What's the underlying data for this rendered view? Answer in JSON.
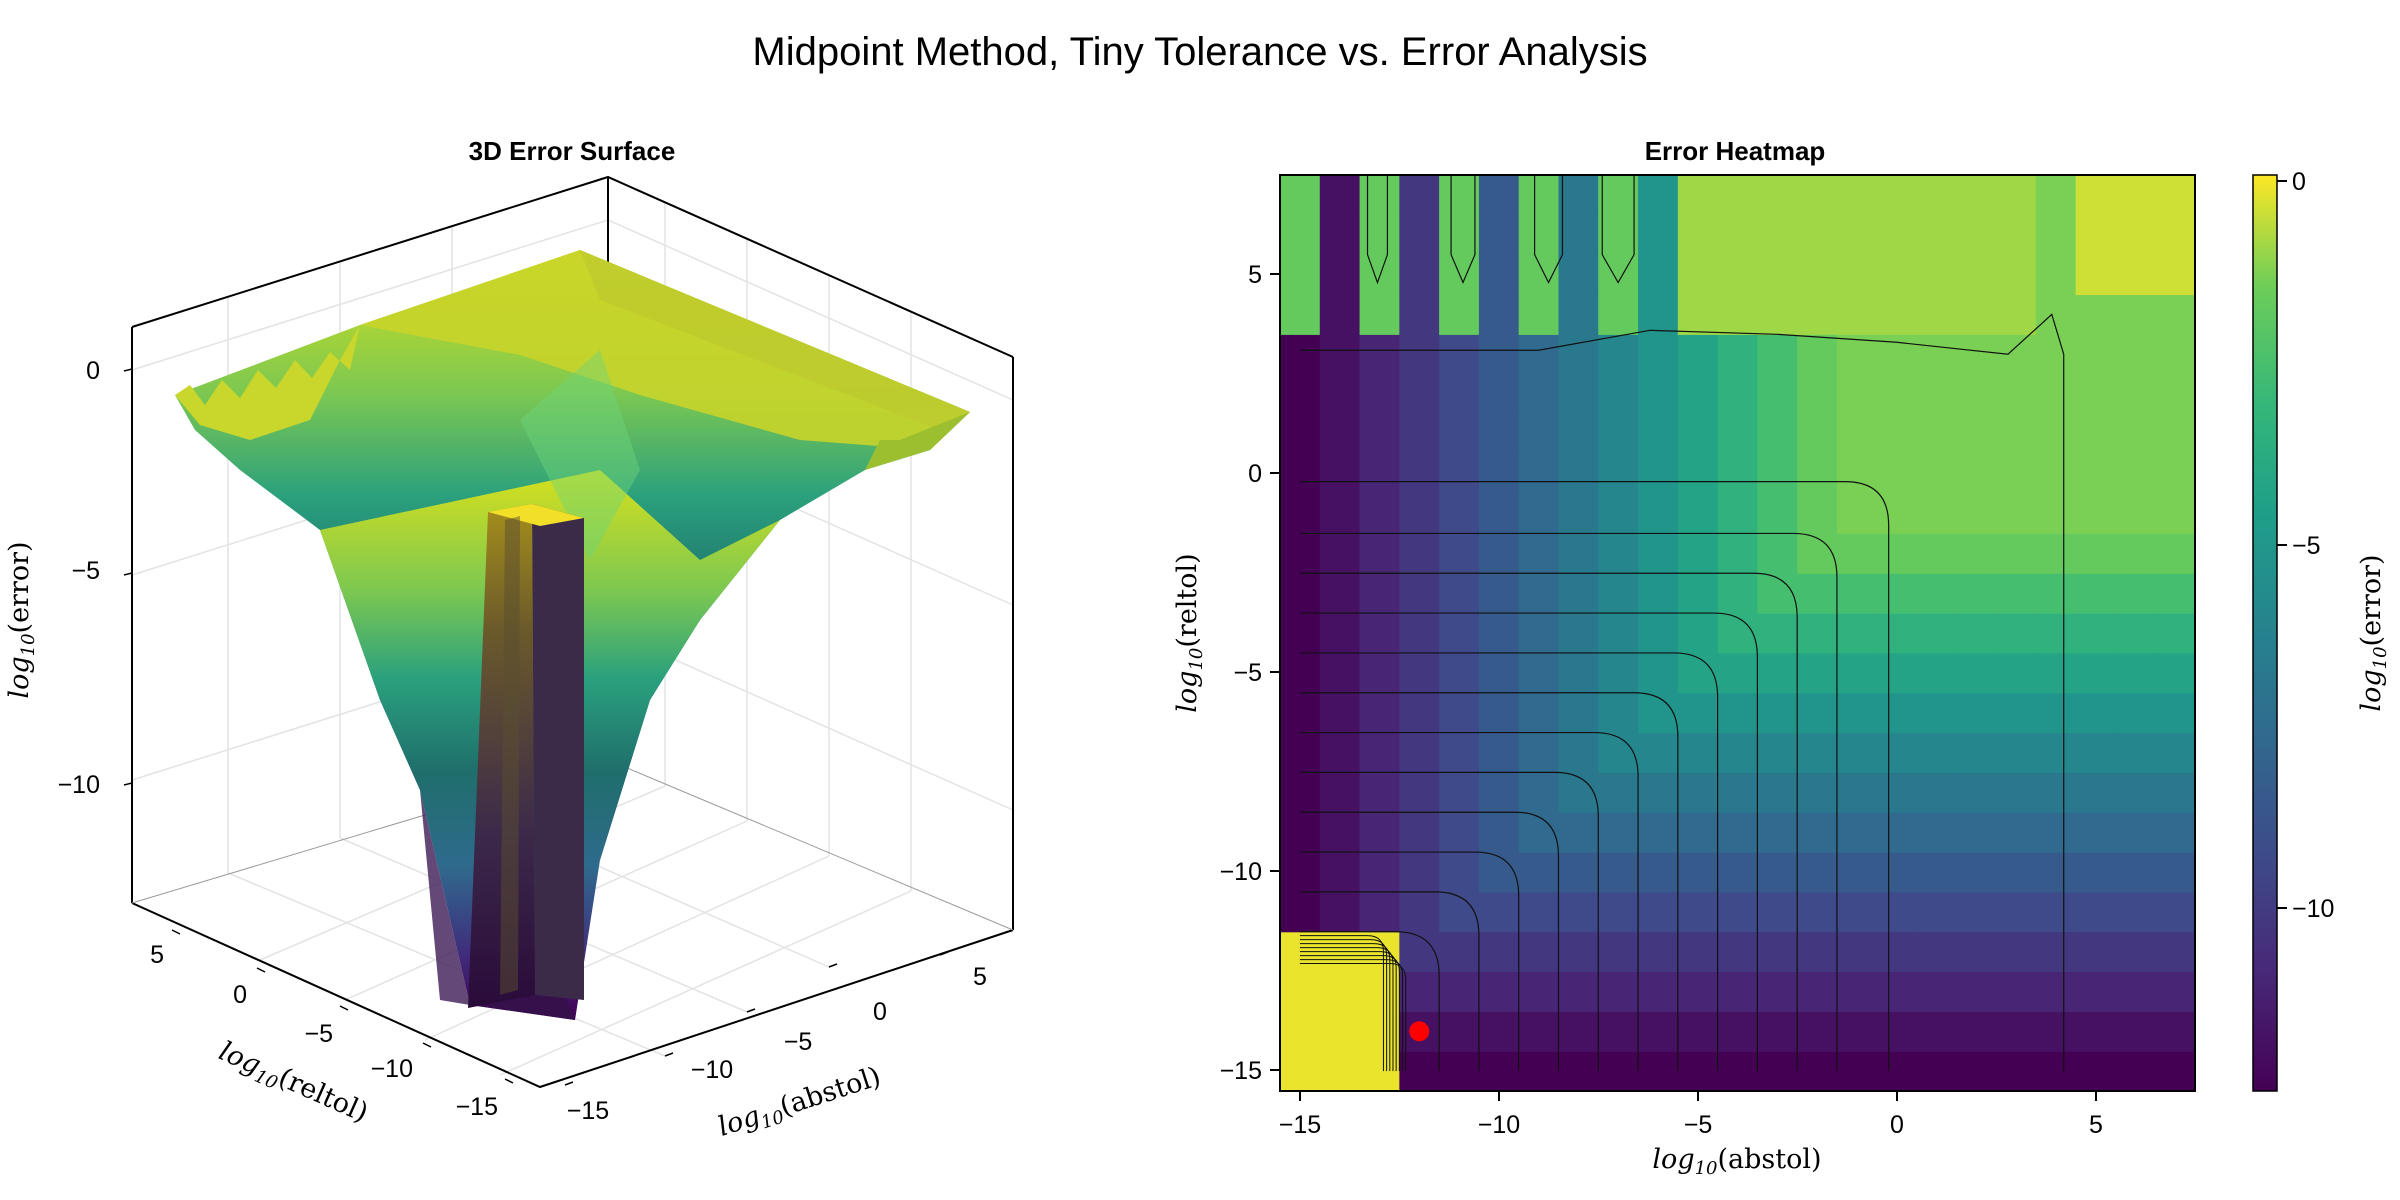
{
  "figure": {
    "title": "Midpoint Method, Tiny Tolerance vs. Error Analysis"
  },
  "colors": {
    "viridis_low": "#440154",
    "viridis_mid": "#21918c",
    "viridis_high": "#fde725",
    "marker": "#ff0000"
  },
  "chart_data": [
    {
      "type": "surface3d",
      "title": "3D Error Surface",
      "x_label": "log10(abstol)",
      "y_label": "log10(reltol)",
      "z_label": "log10(error)",
      "xlim": [
        -15,
        7
      ],
      "ylim": [
        -15,
        7
      ],
      "zlim": [
        -13,
        1
      ],
      "x_ticks": [
        -15,
        -10,
        -5,
        0,
        5
      ],
      "y_ticks": [
        -15,
        -10,
        -5,
        0,
        5
      ],
      "z_ticks": [
        -10,
        -5,
        0
      ],
      "grid": true,
      "colormap": "viridis"
    },
    {
      "type": "heatmap",
      "title": "Error Heatmap",
      "x_label": "log10(abstol)",
      "y_label": "log10(reltol)",
      "xlim": [
        -15.5,
        7.5
      ],
      "ylim": [
        -15.5,
        7.5
      ],
      "x_ticks": [
        -15,
        -10,
        -5,
        0,
        5
      ],
      "y_ticks": [
        -15,
        -10,
        -5,
        0,
        5
      ],
      "grid_step": 1,
      "colormap": "viridis",
      "colorbar": {
        "label": "log10(error)",
        "range": [
          -12.5,
          0.2
        ],
        "ticks": [
          0,
          -5,
          -10
        ]
      },
      "contours": true,
      "highlight_point": {
        "x": -12,
        "y": -14
      }
    }
  ],
  "tick_text": {
    "surf_x": [
      "−15",
      "−10",
      "−5",
      "0",
      "5"
    ],
    "surf_y": [
      "5",
      "0",
      "−5",
      "−10",
      "−15"
    ],
    "surf_z": [
      "0",
      "−5",
      "−10"
    ],
    "hm_x": [
      "−15",
      "−10",
      "−5",
      "0",
      "5"
    ],
    "hm_y": [
      "5",
      "0",
      "−5",
      "−10",
      "−15"
    ],
    "cb": [
      "0",
      "−5",
      "−10"
    ]
  }
}
